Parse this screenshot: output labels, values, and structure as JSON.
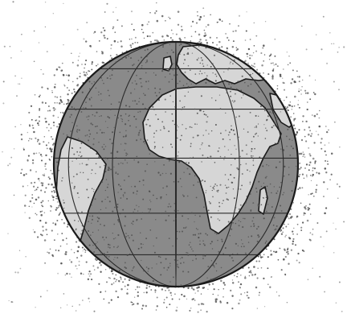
{
  "scene": {
    "subject": "globe-with-orbital-debris",
    "colors": {
      "background": "#ffffff",
      "ocean": "#8a8a8a",
      "land": "#d6d6d6",
      "outline": "#1a1a1a",
      "grid": "#2a2a2a",
      "debris": "#4a4a4a"
    },
    "debris": {
      "seed": 20240517,
      "inner_count": 1000,
      "outer_count": 380,
      "halo_count": 900
    }
  }
}
